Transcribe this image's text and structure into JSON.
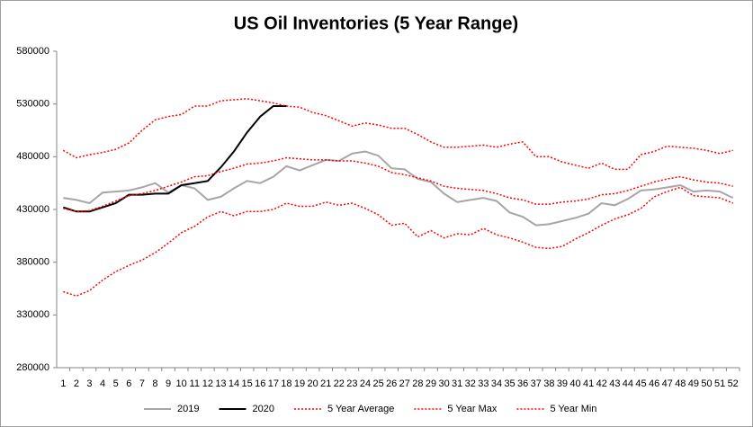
{
  "chart_data": {
    "type": "line",
    "title": "US Oil Inventories (5 Year Range)",
    "categories": [
      1,
      2,
      3,
      4,
      5,
      6,
      7,
      8,
      9,
      10,
      11,
      12,
      13,
      14,
      15,
      16,
      17,
      18,
      19,
      20,
      21,
      22,
      23,
      24,
      25,
      26,
      27,
      28,
      29,
      30,
      31,
      32,
      33,
      34,
      35,
      36,
      37,
      38,
      39,
      40,
      41,
      42,
      43,
      44,
      45,
      46,
      47,
      48,
      49,
      50,
      51,
      52
    ],
    "ylim": [
      280000,
      580000
    ],
    "yticks": [
      280000,
      330000,
      380000,
      430000,
      480000,
      530000,
      580000
    ],
    "grid": false,
    "legend": "bottom",
    "series": [
      {
        "name": "2019",
        "color": "#a6a6a6",
        "dash": "solid",
        "values": [
          441000,
          439000,
          436000,
          446000,
          447000,
          448000,
          451000,
          455000,
          446000,
          453000,
          450000,
          439000,
          442000,
          450000,
          457000,
          455000,
          461000,
          471000,
          467000,
          472000,
          477000,
          476000,
          483000,
          485000,
          481000,
          469000,
          468000,
          459000,
          456000,
          445000,
          437000,
          439000,
          441000,
          438000,
          427000,
          423000,
          415000,
          416000,
          419000,
          422000,
          426000,
          436000,
          434000,
          440000,
          448000,
          449000,
          451000,
          453000,
          447000,
          448000,
          447000,
          441000
        ]
      },
      {
        "name": "2020",
        "color": "#000000",
        "dash": "solid",
        "values": [
          432000,
          428000,
          428000,
          432000,
          436000,
          444000,
          444000,
          445000,
          445000,
          453000,
          455000,
          457000,
          470000,
          485000,
          503000,
          518000,
          528000,
          528000,
          null,
          null,
          null,
          null,
          null,
          null,
          null,
          null,
          null,
          null,
          null,
          null,
          null,
          null,
          null,
          null,
          null,
          null,
          null,
          null,
          null,
          null,
          null,
          null,
          null,
          null,
          null,
          null,
          null,
          null,
          null,
          null,
          null,
          null
        ]
      },
      {
        "name": "5 Year Average",
        "color": "#ff0000",
        "dash": "dotted",
        "values": [
          431000,
          428000,
          429000,
          433000,
          438000,
          443000,
          445000,
          448000,
          452000,
          456000,
          461000,
          462000,
          466000,
          469000,
          473000,
          474000,
          476000,
          479000,
          478000,
          477000,
          477000,
          476000,
          476000,
          474000,
          471000,
          465000,
          463000,
          460000,
          457000,
          452000,
          450000,
          449000,
          448000,
          445000,
          441000,
          439000,
          435000,
          435000,
          437000,
          438000,
          440000,
          444000,
          445000,
          448000,
          452000,
          456000,
          459000,
          461000,
          458000,
          456000,
          455000,
          452000
        ]
      },
      {
        "name": "5 Year Max",
        "color": "#ff0000",
        "dash": "dotted",
        "values": [
          486000,
          479000,
          482000,
          484000,
          487000,
          493000,
          505000,
          515000,
          518000,
          520000,
          528000,
          528000,
          533000,
          534000,
          535000,
          533000,
          531000,
          528000,
          527000,
          522000,
          519000,
          514000,
          509000,
          512000,
          510000,
          507000,
          507000,
          501000,
          494000,
          489000,
          489000,
          490000,
          491000,
          489000,
          492000,
          494000,
          480000,
          480000,
          475000,
          472000,
          469000,
          474000,
          468000,
          468000,
          482000,
          485000,
          490000,
          489000,
          488000,
          486000,
          483000,
          486000
        ]
      },
      {
        "name": "5 Year Min",
        "color": "#ff0000",
        "dash": "dotted",
        "values": [
          352000,
          348000,
          353000,
          363000,
          371000,
          377000,
          382000,
          389000,
          398000,
          408000,
          414000,
          423000,
          428000,
          424000,
          428000,
          428000,
          430000,
          436000,
          433000,
          433000,
          437000,
          434000,
          436000,
          431000,
          425000,
          415000,
          417000,
          404000,
          410000,
          403000,
          407000,
          406000,
          412000,
          406000,
          403000,
          399000,
          394000,
          393000,
          395000,
          402000,
          408000,
          415000,
          421000,
          425000,
          431000,
          442000,
          447000,
          451000,
          443000,
          442000,
          441000,
          436000
        ]
      }
    ]
  }
}
